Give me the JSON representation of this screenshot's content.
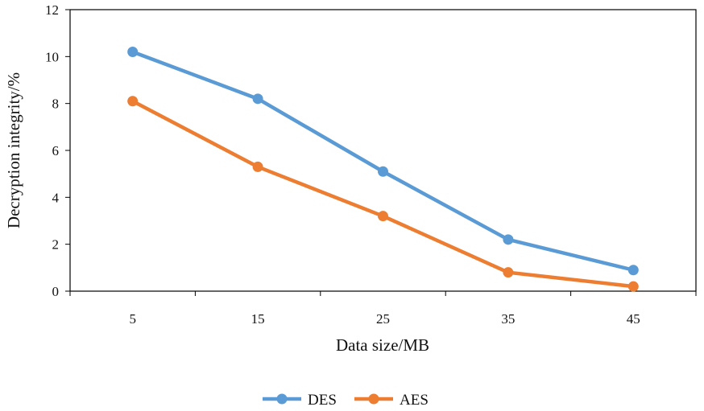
{
  "chart_data": {
    "type": "line",
    "title": "",
    "xlabel": "Data size/MB",
    "ylabel": "Decryption integrity/%",
    "categories": [
      "5",
      "15",
      "25",
      "35",
      "45"
    ],
    "ylim": [
      0,
      12
    ],
    "yticks": [
      "0",
      "2",
      "4",
      "6",
      "8",
      "10",
      "12"
    ],
    "grid": false,
    "legend_position": "bottom-center",
    "series": [
      {
        "name": "DES",
        "color": "#5b9bd5",
        "values": [
          10.2,
          8.2,
          5.1,
          2.2,
          0.9
        ]
      },
      {
        "name": "AES",
        "color": "#ed7d31",
        "values": [
          8.1,
          5.3,
          3.2,
          0.8,
          0.2
        ]
      }
    ]
  }
}
